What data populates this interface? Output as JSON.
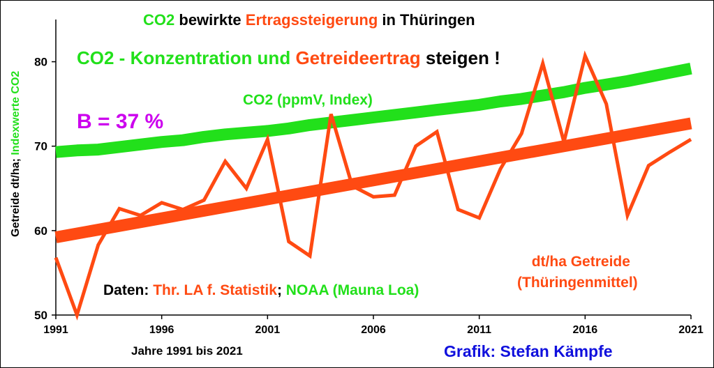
{
  "title": {
    "part1": "CO2",
    "part2": "bewirkte",
    "part3": "Ertragssteigerung",
    "part4": "in Thüringen"
  },
  "subtitle": {
    "part1": "CO2 - Konzentration und",
    "part2": "Getreideertrag",
    "part3": "steigen !"
  },
  "stat_label": "B = 37 %",
  "ylabel": {
    "part1": "Getreide dt/ha;",
    "part2": "Indexwerte CO2"
  },
  "xlabel": "Jahre 1991 bis 2021",
  "credit": "Grafik: Stefan Kämpfe",
  "source": {
    "label": "Daten:",
    "src1": "Thr. LA f. Statistik",
    "sep": ";",
    "src2": "NOAA (Mauna Loa)"
  },
  "co2_label": "CO2 (ppmV, Index)",
  "grain_label": {
    "line1": "dt/ha Getreide",
    "line2": "(Thüringenmittel)"
  },
  "colors": {
    "co2": "#22e01b",
    "grain": "#ff4a12",
    "stat": "#cc00ee",
    "credit": "#1010dd"
  },
  "chart_data": {
    "type": "line",
    "xlim": [
      1991,
      2021
    ],
    "ylim": [
      50,
      85
    ],
    "x_ticks": [
      1991,
      1996,
      2001,
      2006,
      2011,
      2016,
      2021
    ],
    "y_ticks": [
      50,
      60,
      70,
      80
    ],
    "grid": false,
    "series": [
      {
        "name": "dt/ha Getreide (Thüringenmittel)",
        "x": [
          1991,
          1992,
          1993,
          1994,
          1995,
          1996,
          1997,
          1998,
          1999,
          2000,
          2001,
          2002,
          2003,
          2004,
          2005,
          2006,
          2007,
          2008,
          2009,
          2010,
          2011,
          2012,
          2013,
          2014,
          2015,
          2016,
          2017,
          2018,
          2019,
          2020,
          2021
        ],
        "values": [
          56.8,
          50.0,
          58.3,
          62.6,
          61.8,
          63.3,
          62.5,
          63.6,
          68.2,
          65.0,
          70.8,
          58.7,
          57.0,
          73.8,
          65.3,
          64.0,
          64.2,
          70.0,
          71.7,
          62.5,
          61.5,
          67.3,
          71.5,
          79.8,
          70.5,
          80.7,
          75.0,
          61.8,
          67.7,
          69.3,
          70.8
        ]
      },
      {
        "name": "Trend Getreide",
        "x": [
          1991,
          2021
        ],
        "values": [
          59.2,
          72.7
        ]
      },
      {
        "name": "CO2 (ppmV, Index)",
        "x": [
          1991,
          1992,
          1993,
          1994,
          1995,
          1996,
          1997,
          1998,
          1999,
          2000,
          2001,
          2002,
          2003,
          2004,
          2005,
          2006,
          2007,
          2008,
          2009,
          2010,
          2011,
          2012,
          2013,
          2014,
          2015,
          2016,
          2017,
          2018,
          2019,
          2020,
          2021
        ],
        "values": [
          69.3,
          69.5,
          69.6,
          69.9,
          70.2,
          70.5,
          70.7,
          71.1,
          71.4,
          71.6,
          71.8,
          72.1,
          72.5,
          72.8,
          73.1,
          73.4,
          73.7,
          74.0,
          74.3,
          74.6,
          74.9,
          75.3,
          75.6,
          76.0,
          76.4,
          76.9,
          77.3,
          77.7,
          78.2,
          78.7,
          79.2
        ]
      }
    ]
  }
}
